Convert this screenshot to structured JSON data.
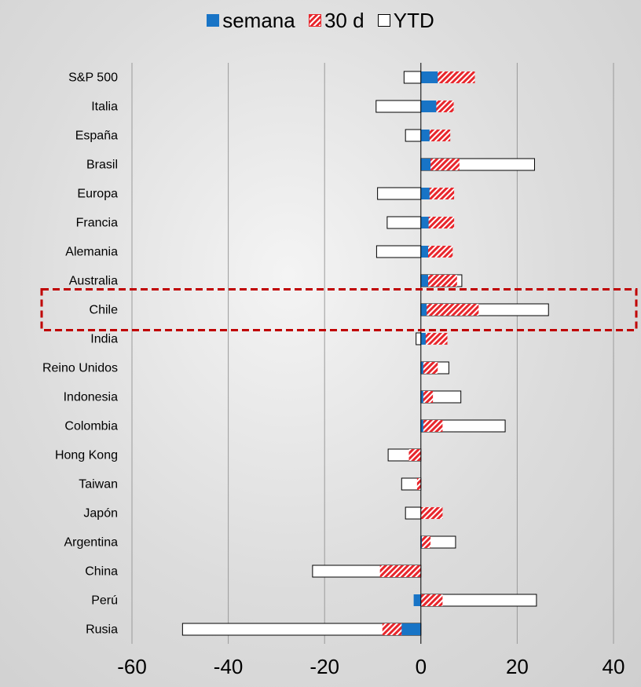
{
  "chart_data": {
    "type": "bar",
    "orientation": "horizontal",
    "stacked": true,
    "categories": [
      "S&P 500",
      "Italia",
      "España",
      "Brasil",
      "Europa",
      "Francia",
      "Alemania",
      "Australia",
      "Chile",
      "India",
      "Reino Unidos",
      "Indonesia",
      "Colombia",
      "Hong Kong",
      "Taiwan",
      "Japón",
      "Argentina",
      "China",
      "Perú",
      "Rusia"
    ],
    "series": [
      {
        "name": "semana",
        "color": "#1874c6",
        "values": [
          3.5,
          3.2,
          1.8,
          2.0,
          1.8,
          1.6,
          1.5,
          1.5,
          1.2,
          1.0,
          0.5,
          0.5,
          0.5,
          0,
          0,
          0,
          0.2,
          0,
          -1.5,
          -4.0
        ]
      },
      {
        "name": "30 d",
        "color": "#e8262c",
        "values": [
          11.2,
          6.8,
          6.1,
          8.0,
          6.9,
          6.9,
          6.6,
          7.5,
          12.0,
          5.5,
          3.5,
          2.5,
          4.5,
          -2.5,
          -0.8,
          4.5,
          2.0,
          -8.5,
          4.5,
          -8.0
        ]
      },
      {
        "name": "YTD",
        "color": "#000000",
        "values": [
          -3.5,
          -9.3,
          -3.2,
          23.6,
          -9.0,
          -7.0,
          -9.2,
          8.5,
          26.5,
          -1.0,
          5.8,
          8.3,
          17.5,
          -6.8,
          -4.0,
          -3.2,
          7.2,
          -22.5,
          24.0,
          -49.5
        ]
      }
    ],
    "xlim": [
      -60,
      40
    ],
    "x_ticks": [
      -60,
      -40,
      -20,
      0,
      20,
      40
    ],
    "x_tick_labels": [
      "-60",
      "-40",
      "-20",
      "0",
      "20",
      "40"
    ],
    "grid": "vertical",
    "legend": "top-center",
    "highlighted_category": "Chile",
    "title": "",
    "xlabel": "",
    "ylabel": ""
  }
}
